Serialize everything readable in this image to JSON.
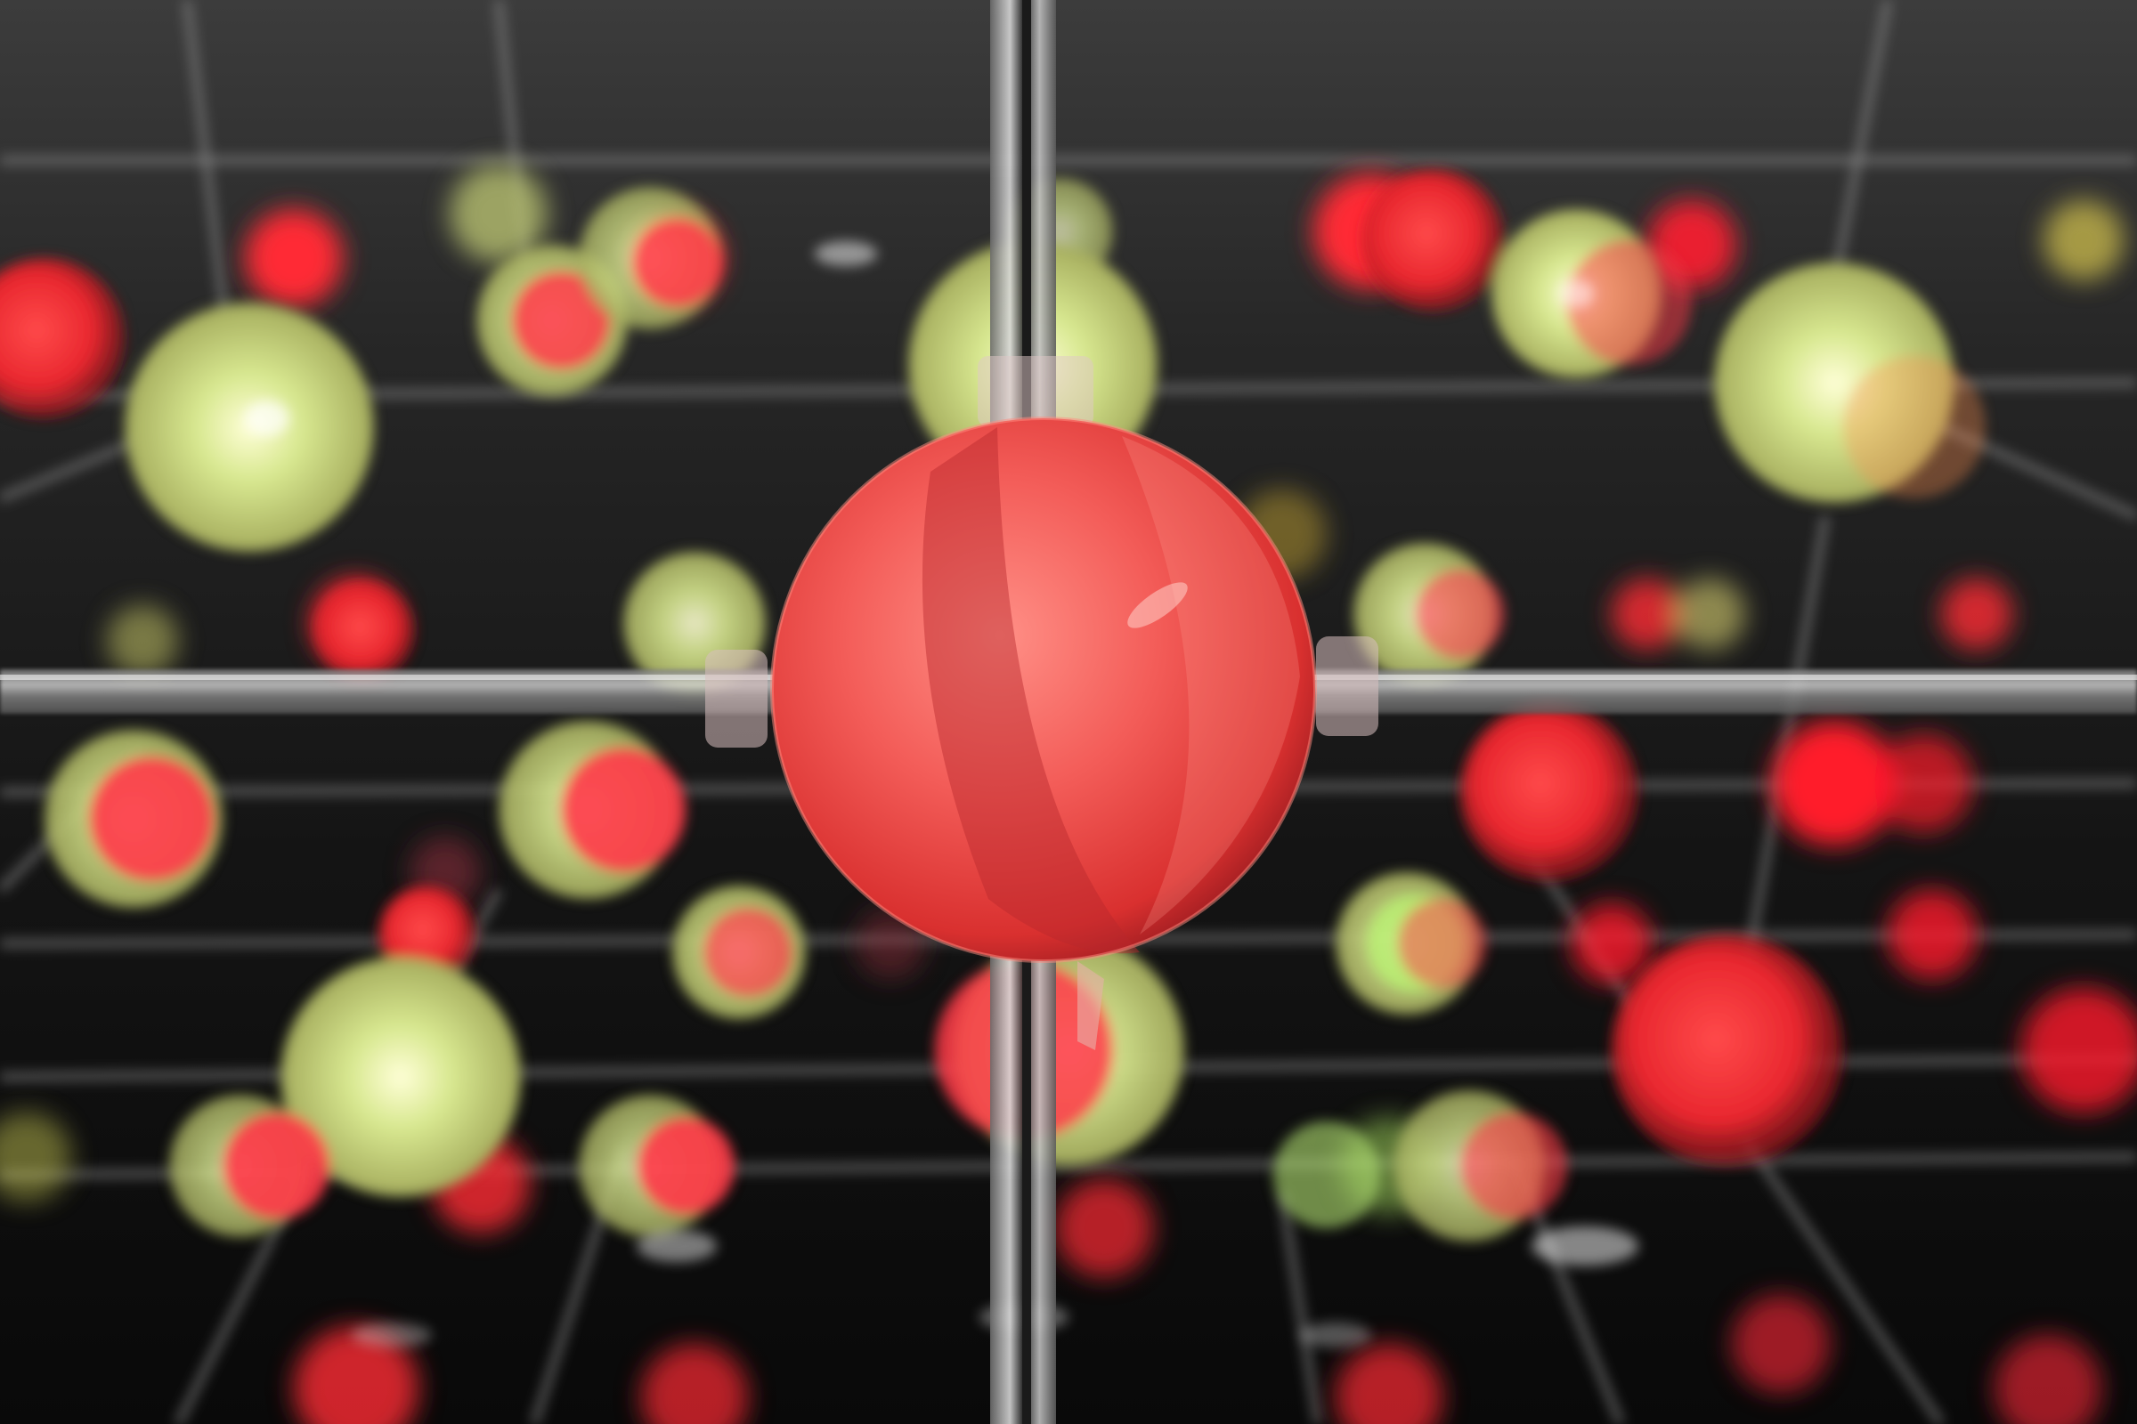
{
  "scene": {
    "colors": {
      "background_top": "#3a3a3a",
      "background_bottom": "#080808",
      "red_sphere": "#ff3a3a",
      "red_glow": "#ff1a2a",
      "yellow_sphere": "#e2e88a",
      "yellow_glow": "#f4f2a0",
      "rod": "#b8b8b8",
      "focus_sphere_light": "#ff8a80",
      "focus_sphere_dark": "#d8242a"
    },
    "subject": "red-sphere-on-rods",
    "surroundings": "lattice-of-red-and-yellow-spheres"
  }
}
